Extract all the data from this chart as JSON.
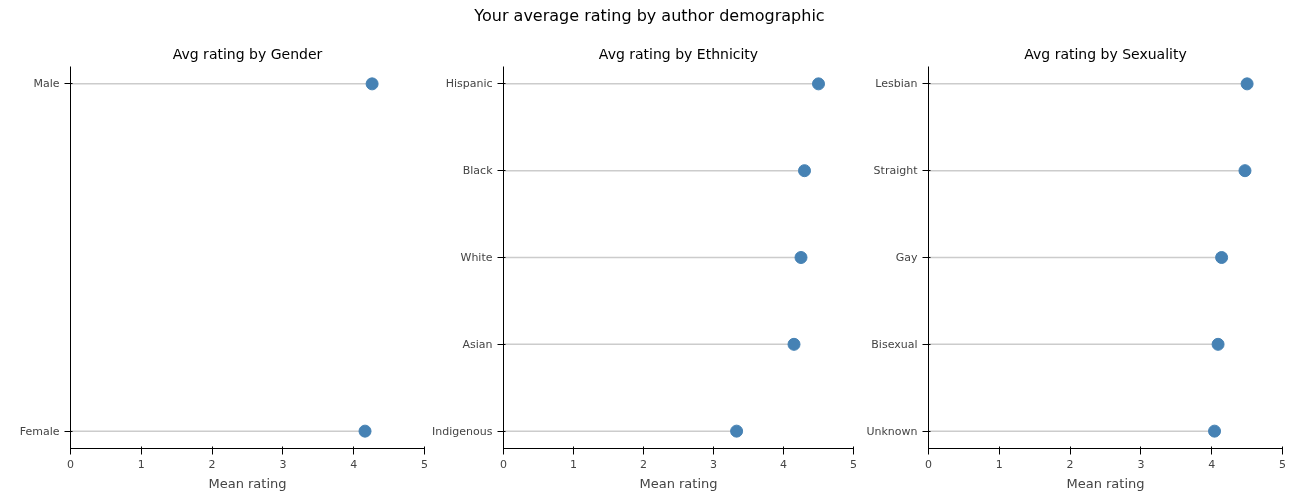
{
  "chart_data": [
    {
      "type": "lollipop",
      "orientation": "horizontal",
      "title": "Avg rating by Gender",
      "xlabel": "Mean rating",
      "annotations": [
        "Your average rating by author demographic"
      ],
      "categories": [
        "Male",
        "Female"
      ],
      "values": [
        4.26,
        4.16
      ],
      "color": "#4682b4",
      "marker": "circle",
      "xlim": [
        0,
        5
      ],
      "xticks": [
        0,
        1,
        2,
        3,
        4,
        5
      ],
      "grid": false
    },
    {
      "type": "lollipop",
      "orientation": "horizontal",
      "title": "Avg rating by Ethnicity",
      "xlabel": "Mean rating",
      "categories": [
        "Hispanic",
        "Black",
        "White",
        "Asian",
        "Indigenous"
      ],
      "values": [
        4.5,
        4.3,
        4.25,
        4.15,
        3.33
      ],
      "color": "#4682b4",
      "marker": "circle",
      "xlim": [
        0,
        5
      ],
      "xticks": [
        0,
        1,
        2,
        3,
        4,
        5
      ],
      "grid": false
    },
    {
      "type": "lollipop",
      "orientation": "horizontal",
      "title": "Avg rating by Sexuality",
      "xlabel": "Mean rating",
      "categories": [
        "Lesbian",
        "Straight",
        "Gay",
        "Bisexual",
        "Unknown"
      ],
      "values": [
        4.5,
        4.47,
        4.14,
        4.09,
        4.04
      ],
      "color": "#4682b4",
      "marker": "circle",
      "xlim": [
        0,
        5
      ],
      "xticks": [
        0,
        1,
        2,
        3,
        4,
        5
      ],
      "grid": false
    }
  ]
}
